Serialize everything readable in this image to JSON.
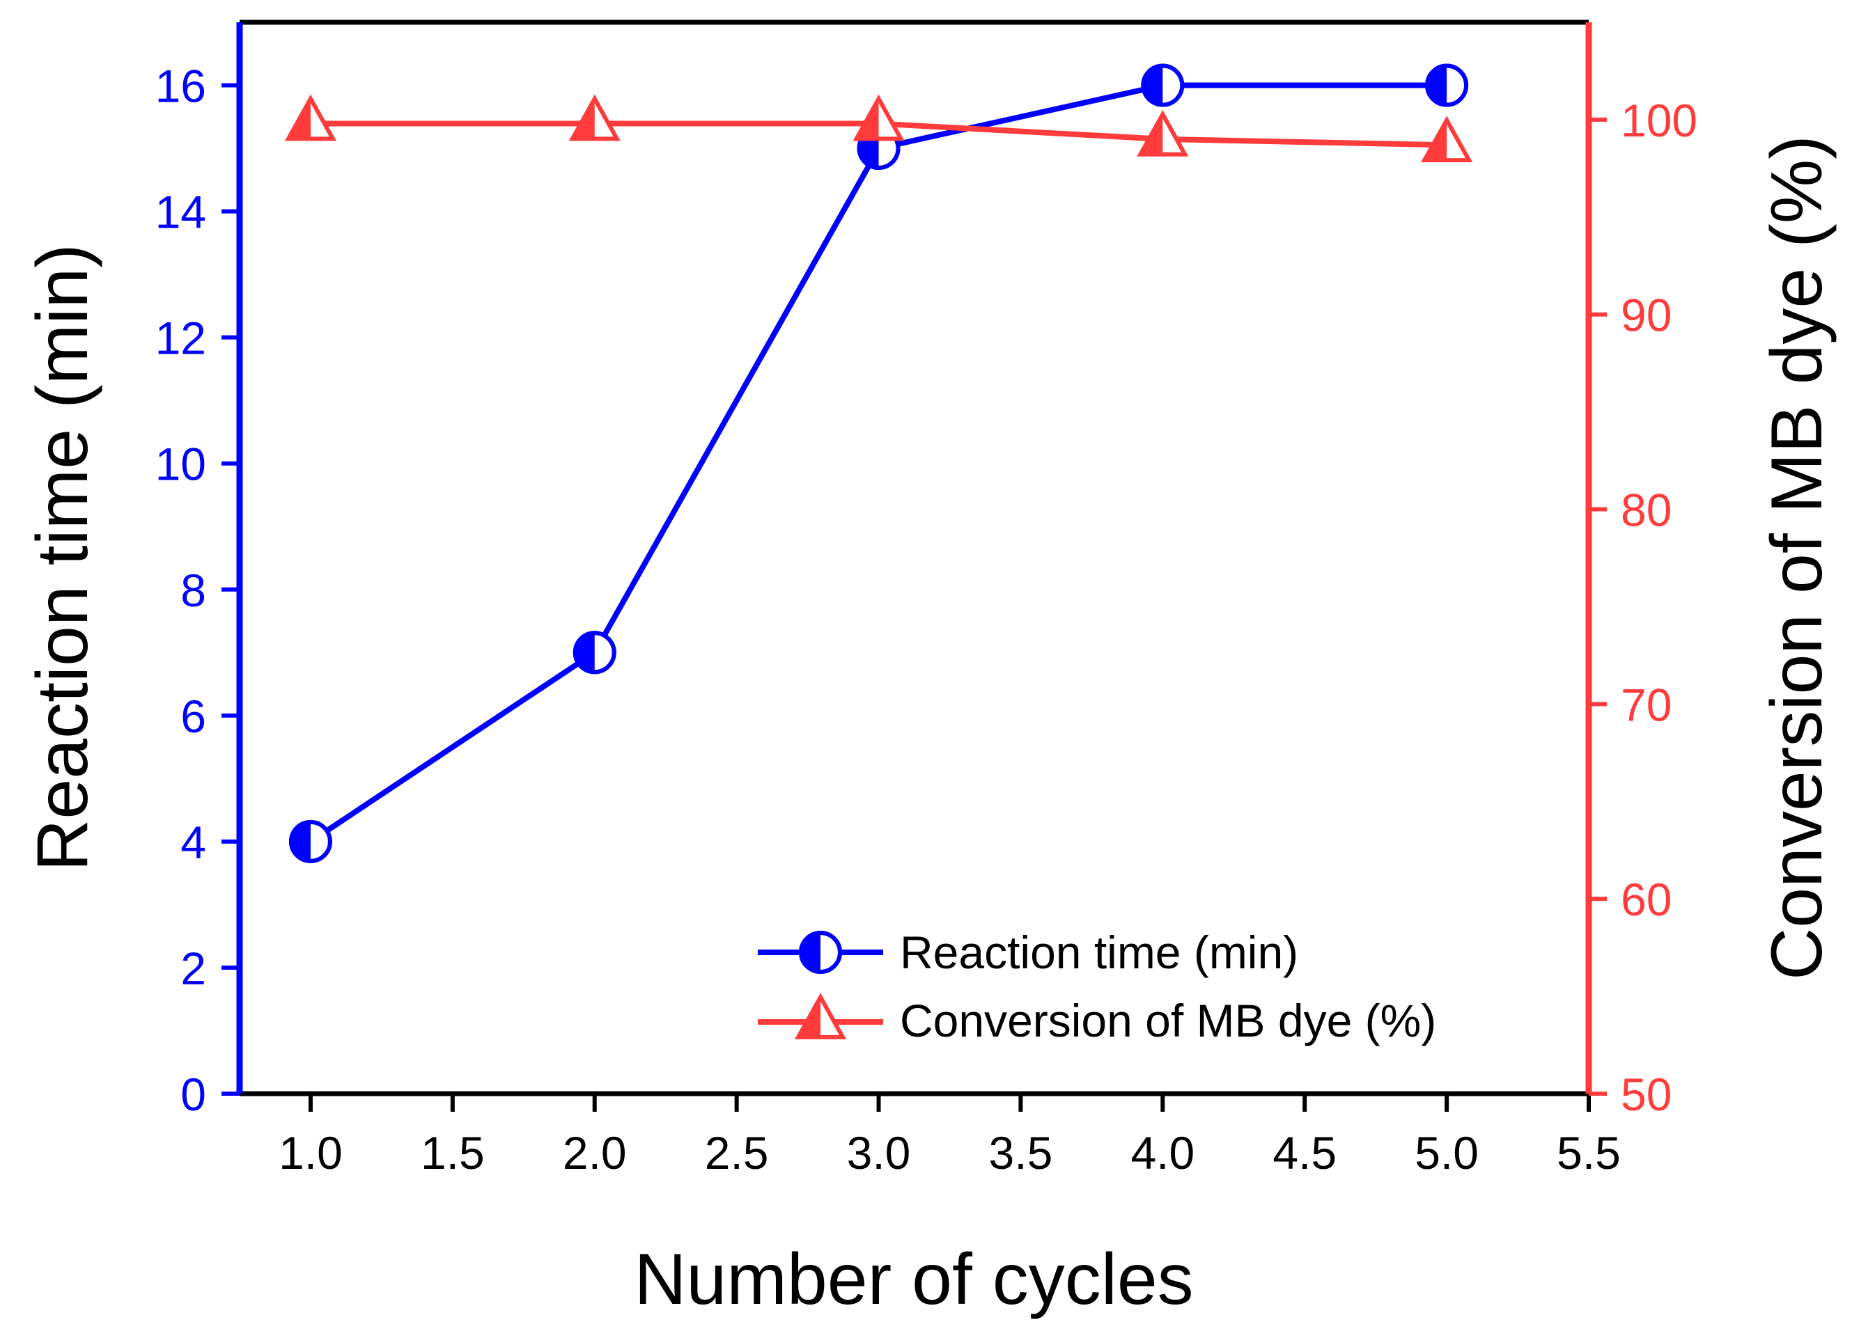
{
  "chart_data": {
    "type": "line",
    "title": "",
    "xlabel": "Number of cycles",
    "ylabel_left": "Reaction time (min)",
    "ylabel_right": "Conversion of MB dye (%)",
    "xlim": [
      0.75,
      5.5
    ],
    "ylim_left": [
      0,
      17
    ],
    "ylim_right": [
      50,
      105
    ],
    "x_ticks": [
      "1.0",
      "1.5",
      "2.0",
      "2.5",
      "3.0",
      "3.5",
      "4.0",
      "4.5",
      "5.0",
      "5.5"
    ],
    "y_left_ticks": [
      "0",
      "2",
      "4",
      "6",
      "8",
      "10",
      "12",
      "14",
      "16"
    ],
    "y_right_ticks": [
      "50",
      "60",
      "70",
      "80",
      "90",
      "100"
    ],
    "grid": false,
    "legend_position": "bottom-right",
    "series": [
      {
        "name": "Reaction time (min)",
        "axis": "left",
        "color": "#0000ff",
        "marker": "half-filled-circle",
        "x": [
          1,
          2,
          3,
          4,
          5
        ],
        "y": [
          4,
          7,
          15,
          16,
          16
        ]
      },
      {
        "name": "Conversion of MB dye (%)",
        "axis": "right",
        "color": "#ff3b3b",
        "marker": "half-filled-triangle",
        "x": [
          1,
          2,
          3,
          4,
          5
        ],
        "y": [
          99.8,
          99.8,
          99.8,
          99.0,
          98.7
        ]
      }
    ]
  }
}
